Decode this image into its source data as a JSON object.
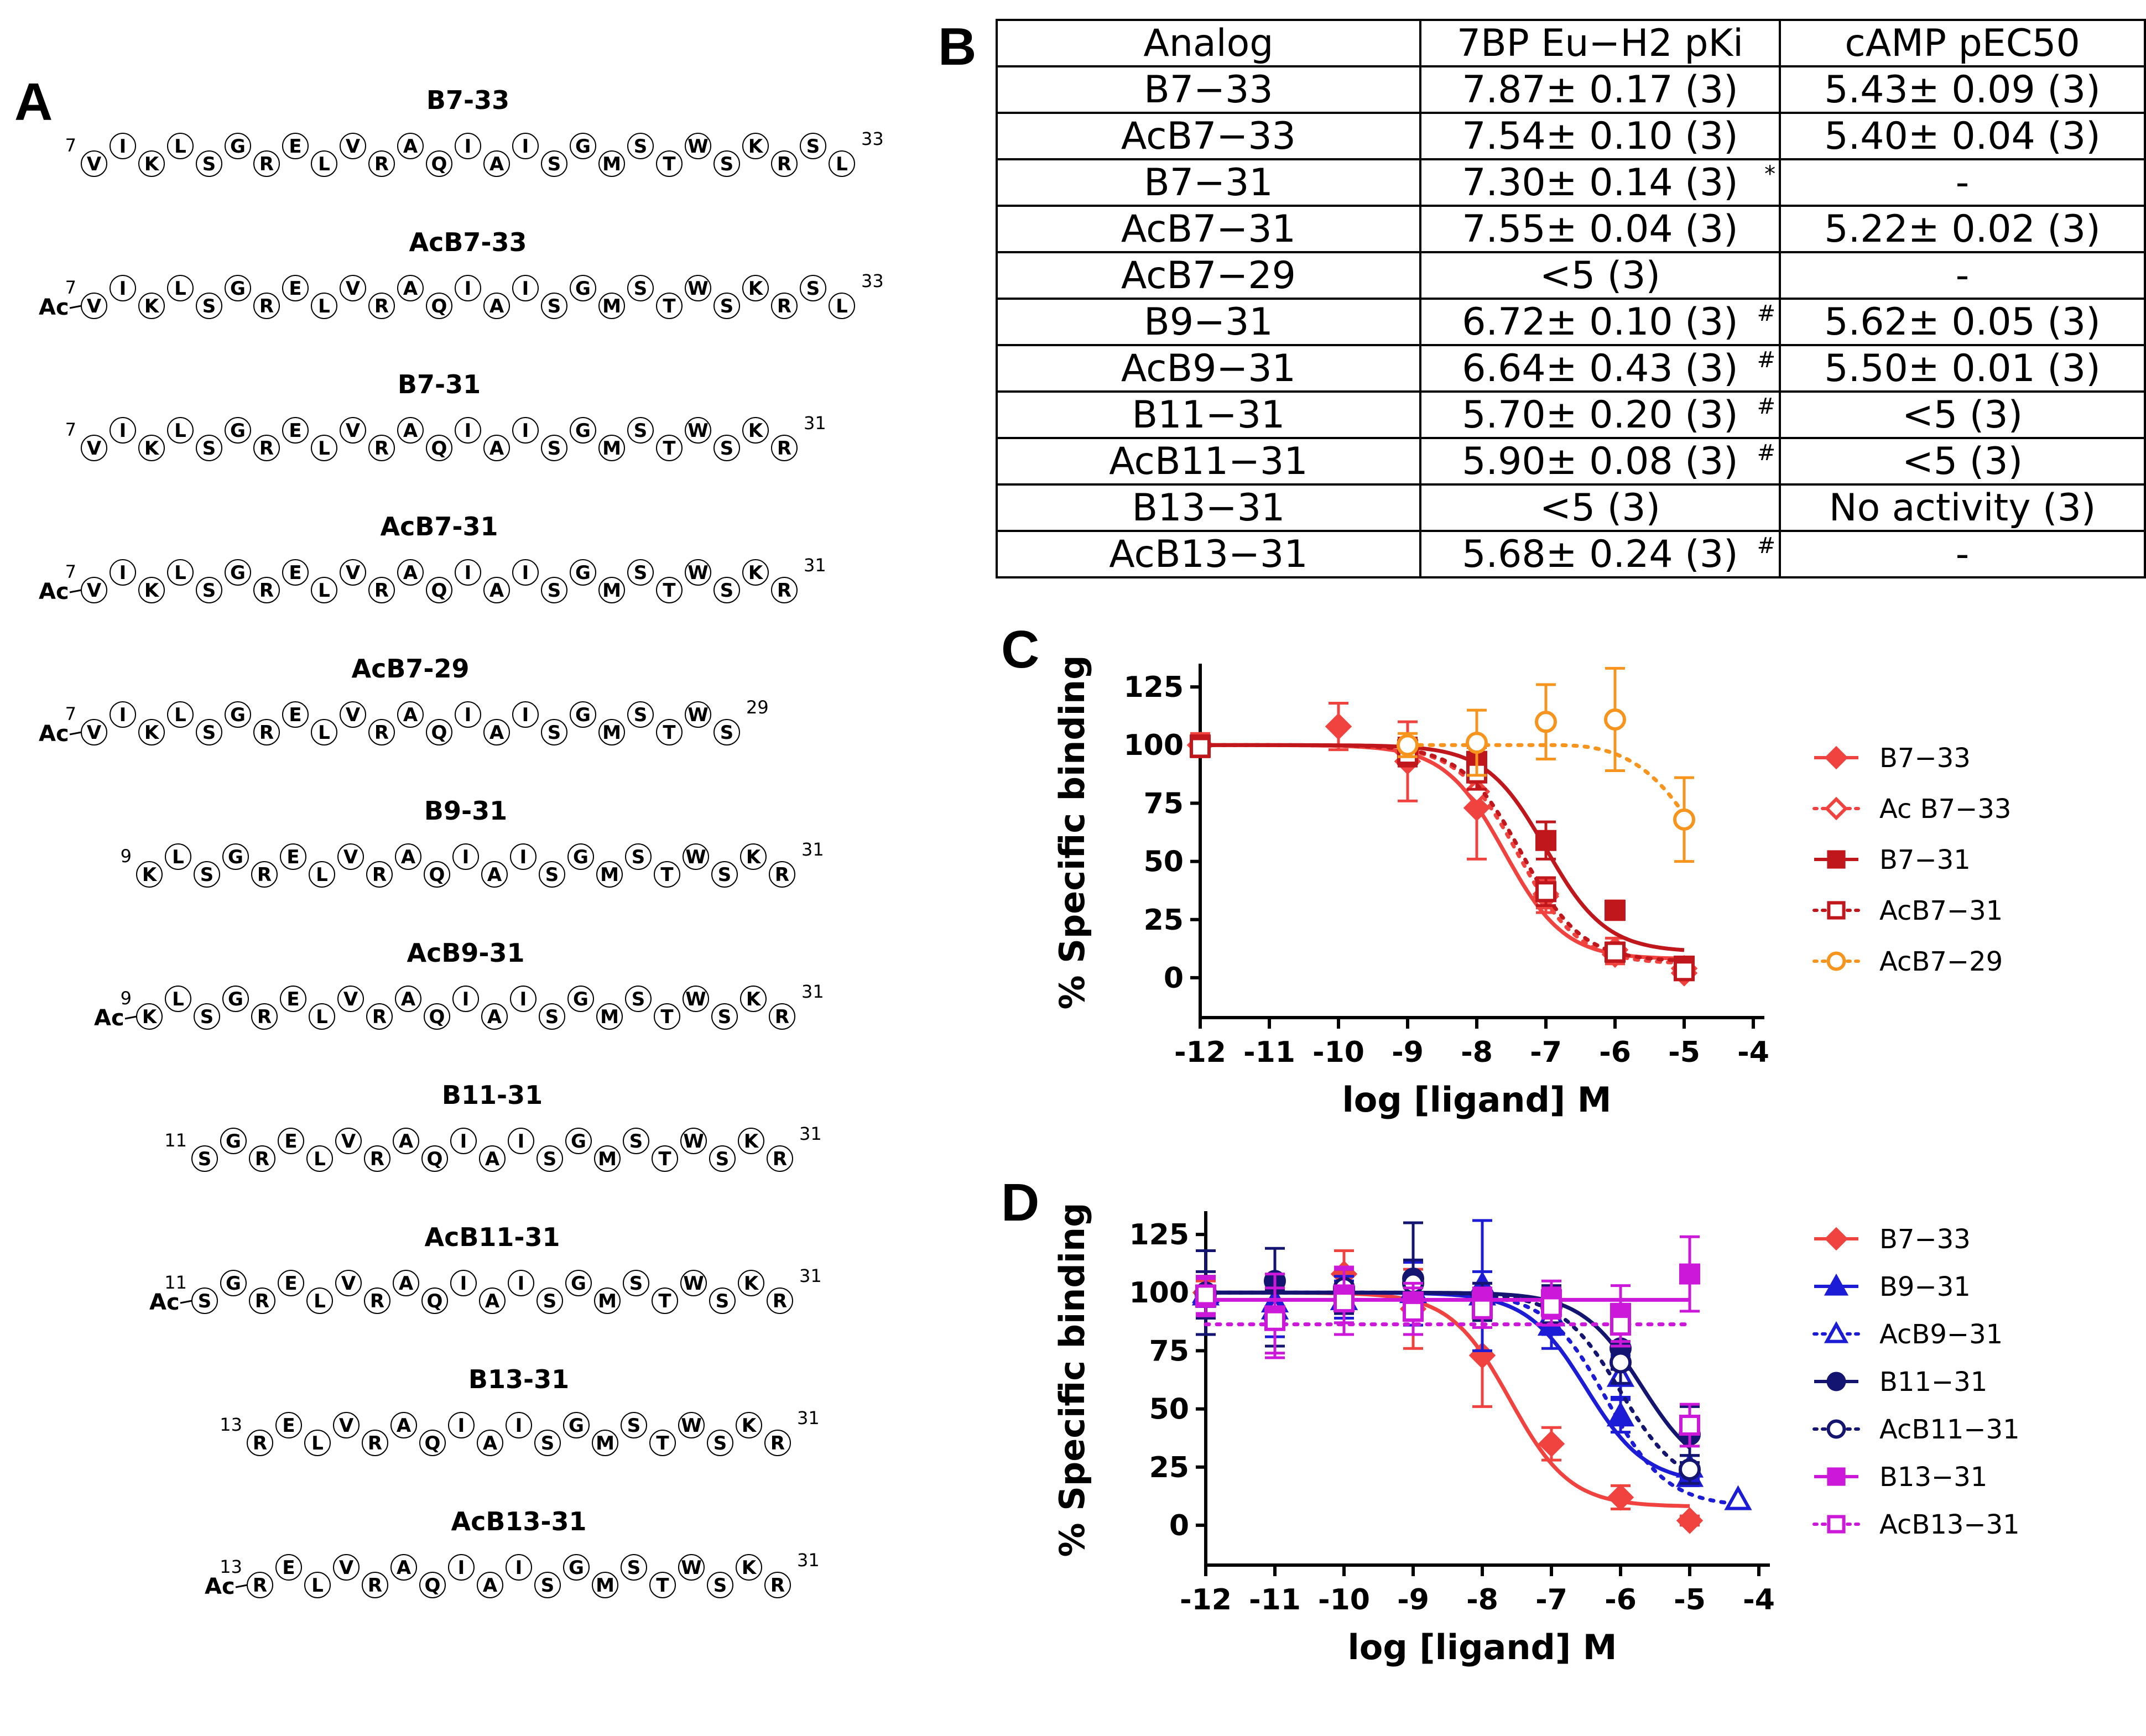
{
  "panel_labels": {
    "a": "A",
    "b": "B",
    "c": "C",
    "d": "D"
  },
  "peptides": [
    {
      "name": "B7-33",
      "acetyl": "",
      "start": "7",
      "end": "33",
      "residues": [
        "V",
        "I",
        "K",
        "L",
        "S",
        "G",
        "R",
        "E",
        "L",
        "V",
        "R",
        "A",
        "Q",
        "I",
        "A",
        "I",
        "S",
        "G",
        "M",
        "S",
        "T",
        "W",
        "S",
        "K",
        "R",
        "S",
        "L"
      ]
    },
    {
      "name": "AcB7-33",
      "acetyl": "Ac",
      "start": "7",
      "end": "33",
      "residues": [
        "V",
        "I",
        "K",
        "L",
        "S",
        "G",
        "R",
        "E",
        "L",
        "V",
        "R",
        "A",
        "Q",
        "I",
        "A",
        "I",
        "S",
        "G",
        "M",
        "S",
        "T",
        "W",
        "S",
        "K",
        "R",
        "S",
        "L"
      ]
    },
    {
      "name": "B7-31",
      "acetyl": "",
      "start": "7",
      "end": "31",
      "residues": [
        "V",
        "I",
        "K",
        "L",
        "S",
        "G",
        "R",
        "E",
        "L",
        "V",
        "R",
        "A",
        "Q",
        "I",
        "A",
        "I",
        "S",
        "G",
        "M",
        "S",
        "T",
        "W",
        "S",
        "K",
        "R"
      ]
    },
    {
      "name": "AcB7-31",
      "acetyl": "Ac",
      "start": "7",
      "end": "31",
      "residues": [
        "V",
        "I",
        "K",
        "L",
        "S",
        "G",
        "R",
        "E",
        "L",
        "V",
        "R",
        "A",
        "Q",
        "I",
        "A",
        "I",
        "S",
        "G",
        "M",
        "S",
        "T",
        "W",
        "S",
        "K",
        "R"
      ]
    },
    {
      "name": "AcB7-29",
      "acetyl": "Ac",
      "start": "7",
      "end": "29",
      "residues": [
        "V",
        "I",
        "K",
        "L",
        "S",
        "G",
        "R",
        "E",
        "L",
        "V",
        "R",
        "A",
        "Q",
        "I",
        "A",
        "I",
        "S",
        "G",
        "M",
        "S",
        "T",
        "W",
        "S"
      ]
    },
    {
      "name": "B9-31",
      "acetyl": "",
      "start": "9",
      "end": "31",
      "residues": [
        "K",
        "L",
        "S",
        "G",
        "R",
        "E",
        "L",
        "V",
        "R",
        "A",
        "Q",
        "I",
        "A",
        "I",
        "S",
        "G",
        "M",
        "S",
        "T",
        "W",
        "S",
        "K",
        "R"
      ]
    },
    {
      "name": "AcB9-31",
      "acetyl": "Ac",
      "start": "9",
      "end": "31",
      "residues": [
        "K",
        "L",
        "S",
        "G",
        "R",
        "E",
        "L",
        "V",
        "R",
        "A",
        "Q",
        "I",
        "A",
        "I",
        "S",
        "G",
        "M",
        "S",
        "T",
        "W",
        "S",
        "K",
        "R"
      ]
    },
    {
      "name": "B11-31",
      "acetyl": "",
      "start": "11",
      "end": "31",
      "residues": [
        "S",
        "G",
        "R",
        "E",
        "L",
        "V",
        "R",
        "A",
        "Q",
        "I",
        "A",
        "I",
        "S",
        "G",
        "M",
        "S",
        "T",
        "W",
        "S",
        "K",
        "R"
      ]
    },
    {
      "name": "AcB11-31",
      "acetyl": "Ac",
      "start": "11",
      "end": "31",
      "residues": [
        "S",
        "G",
        "R",
        "E",
        "L",
        "V",
        "R",
        "A",
        "Q",
        "I",
        "A",
        "I",
        "S",
        "G",
        "M",
        "S",
        "T",
        "W",
        "S",
        "K",
        "R"
      ]
    },
    {
      "name": "B13-31",
      "acetyl": "",
      "start": "13",
      "end": "31",
      "residues": [
        "R",
        "E",
        "L",
        "V",
        "R",
        "A",
        "Q",
        "I",
        "A",
        "I",
        "S",
        "G",
        "M",
        "S",
        "T",
        "W",
        "S",
        "K",
        "R"
      ]
    },
    {
      "name": "AcB13-31",
      "acetyl": "Ac",
      "start": "13",
      "end": "31",
      "residues": [
        "R",
        "E",
        "L",
        "V",
        "R",
        "A",
        "Q",
        "I",
        "A",
        "I",
        "S",
        "G",
        "M",
        "S",
        "T",
        "W",
        "S",
        "K",
        "R"
      ]
    }
  ],
  "table": {
    "headers": [
      "Analog",
      "7BP Eu−H2 pKi",
      "cAMP pEC50"
    ],
    "rows": [
      {
        "analog": "B7−33",
        "pki": "7.87± 0.17 (3)",
        "pki_mark": "",
        "camp": "5.43± 0.09 (3)"
      },
      {
        "analog": "AcB7−33",
        "pki": "7.54± 0.10 (3)",
        "pki_mark": "",
        "camp": "5.40± 0.04 (3)"
      },
      {
        "analog": "B7−31",
        "pki": "7.30± 0.14 (3)",
        "pki_mark": "*",
        "camp": "-"
      },
      {
        "analog": "AcB7−31",
        "pki": "7.55± 0.04 (3)",
        "pki_mark": "",
        "camp": "5.22± 0.02 (3)"
      },
      {
        "analog": "AcB7−29",
        "pki": "<5 (3)",
        "pki_mark": "",
        "camp": "-"
      },
      {
        "analog": "B9−31",
        "pki": "6.72± 0.10 (3)",
        "pki_mark": "#",
        "camp": "5.62± 0.05 (3)"
      },
      {
        "analog": "AcB9−31",
        "pki": "6.64± 0.43 (3)",
        "pki_mark": "#",
        "camp": "5.50± 0.01 (3)"
      },
      {
        "analog": "B11−31",
        "pki": "5.70± 0.20 (3)",
        "pki_mark": "#",
        "camp": "<5 (3)"
      },
      {
        "analog": "AcB11−31",
        "pki": "5.90± 0.08 (3)",
        "pki_mark": "#",
        "camp": "<5 (3)"
      },
      {
        "analog": "B13−31",
        "pki": "<5 (3)",
        "pki_mark": "",
        "camp": "No activity (3)"
      },
      {
        "analog": "AcB13−31",
        "pki": "5.68± 0.24 (3)",
        "pki_mark": "#",
        "camp": "-"
      }
    ]
  },
  "chart_data": [
    {
      "type": "line",
      "panel": "C",
      "xlabel": "log [ligand] M",
      "ylabel": "% Specific binding",
      "xlim": [
        -12,
        -4
      ],
      "ylim": [
        -10,
        135
      ],
      "xticks": [
        -12,
        -11,
        -10,
        -9,
        -8,
        -7,
        -6,
        -5,
        -4
      ],
      "yticks": [
        0,
        25,
        50,
        75,
        100,
        125
      ],
      "legend": "right",
      "series": [
        {
          "name": "B7−33",
          "color": "#f0433f",
          "marker": "diamond",
          "filled": true,
          "dash": false,
          "pIC50": 7.6,
          "bottom": 8,
          "x": [
            -12,
            -10,
            -9,
            -8,
            -7,
            -6,
            -5
          ],
          "y": [
            100,
            108,
            93,
            73,
            35,
            12,
            2
          ],
          "err": [
            5,
            10,
            17,
            22,
            7,
            5,
            2
          ]
        },
        {
          "name": "Ac B7−33",
          "color": "#f0433f",
          "marker": "diamond",
          "filled": false,
          "dash": true,
          "pIC50": 7.4,
          "bottom": 6,
          "x": [
            -12,
            -9,
            -8,
            -7,
            -6,
            -5
          ],
          "y": [
            100,
            97,
            80,
            36,
            10,
            4
          ],
          "err": [
            4,
            6,
            8,
            6,
            4,
            2
          ]
        },
        {
          "name": "B7−31",
          "color": "#c0171c",
          "marker": "square",
          "filled": true,
          "dash": false,
          "pIC50": 7.0,
          "bottom": 11,
          "x": [
            -12,
            -9,
            -8,
            -7,
            -6,
            -5
          ],
          "y": [
            100,
            98,
            93,
            59,
            29,
            5
          ],
          "err": [
            4,
            5,
            6,
            8,
            4,
            2
          ]
        },
        {
          "name": "AcB7−31",
          "color": "#c0171c",
          "marker": "square",
          "filled": false,
          "dash": true,
          "pIC50": 7.35,
          "bottom": 7,
          "x": [
            -12,
            -9,
            -8,
            -7,
            -6,
            -5
          ],
          "y": [
            99,
            96,
            88,
            37,
            11,
            3
          ],
          "err": [
            4,
            5,
            7,
            6,
            4,
            2
          ]
        },
        {
          "name": "AcB7−29",
          "color": "#f7941d",
          "marker": "circle",
          "filled": false,
          "dash": true,
          "flat": true,
          "x": [
            -9,
            -8,
            -7,
            -6,
            -5
          ],
          "y": [
            100,
            101,
            110,
            111,
            68
          ],
          "err": [
            5,
            14,
            16,
            22,
            18
          ]
        }
      ]
    },
    {
      "type": "line",
      "panel": "D",
      "xlabel": "log [ligand] M",
      "ylabel": "% Specific binding",
      "xlim": [
        -12,
        -4
      ],
      "ylim": [
        -10,
        135
      ],
      "xticks": [
        -12,
        -11,
        -10,
        -9,
        -8,
        -7,
        -6,
        -5,
        -4
      ],
      "yticks": [
        0,
        25,
        50,
        75,
        100,
        125
      ],
      "legend": "right",
      "series": [
        {
          "name": "B7−33",
          "color": "#f0433f",
          "marker": "diamond",
          "filled": true,
          "dash": false,
          "pIC50": 7.6,
          "bottom": 8,
          "x": [
            -12,
            -10,
            -9,
            -8,
            -7,
            -6,
            -5
          ],
          "y": [
            100,
            108,
            93,
            73,
            35,
            12,
            2
          ],
          "err": [
            5,
            10,
            17,
            22,
            7,
            5,
            2
          ]
        },
        {
          "name": "B9−31",
          "color": "#1c1cd6",
          "marker": "triangle",
          "filled": true,
          "dash": false,
          "pIC50": 6.5,
          "bottom": 18,
          "x": [
            -12,
            -11,
            -10,
            -9,
            -8,
            -7,
            -6,
            -5
          ],
          "y": [
            100,
            96,
            97,
            101,
            103,
            86,
            47,
            21
          ],
          "err": [
            6,
            10,
            8,
            12,
            28,
            10,
            7,
            4
          ]
        },
        {
          "name": "AcB9−31",
          "color": "#1c1cd6",
          "marker": "triangle",
          "filled": false,
          "dash": true,
          "pIC50": 6.2,
          "bottom": 8,
          "x": [
            -12,
            -11,
            -10,
            -9,
            -8,
            -7,
            -6,
            -5,
            -4.3
          ],
          "y": [
            99,
            93,
            97,
            100,
            99,
            90,
            64,
            25,
            11
          ],
          "err": [
            8,
            12,
            10,
            14,
            10,
            8,
            9,
            5,
            0
          ]
        },
        {
          "name": "B11−31",
          "color": "#141570",
          "marker": "circle",
          "filled": true,
          "dash": false,
          "pIC50": 5.7,
          "bottom": 20,
          "x": [
            -12,
            -11,
            -10,
            -9,
            -8,
            -7,
            -6,
            -5
          ],
          "y": [
            100,
            105,
            101,
            106,
            98,
            95,
            76,
            39
          ],
          "err": [
            18,
            14,
            10,
            24,
            6,
            8,
            9,
            12
          ]
        },
        {
          "name": "AcB11−31",
          "color": "#141570",
          "marker": "circle",
          "filled": false,
          "dash": true,
          "pIC50": 6.0,
          "bottom": 15,
          "x": [
            -12,
            -11,
            -10,
            -9,
            -8,
            -7,
            -6,
            -5
          ],
          "y": [
            99,
            89,
            102,
            104,
            96,
            94,
            70,
            24
          ],
          "err": [
            10,
            12,
            8,
            10,
            8,
            7,
            9,
            6
          ]
        },
        {
          "name": "B13−31",
          "color": "#cc19d9",
          "marker": "square",
          "filled": true,
          "dash": false,
          "flat": true,
          "x": [
            -12,
            -11,
            -10,
            -9,
            -8,
            -7,
            -6,
            -5
          ],
          "y": [
            98,
            90,
            99,
            96,
            96,
            97,
            91,
            108
          ],
          "err": [
            8,
            18,
            12,
            8,
            6,
            8,
            12,
            16
          ]
        },
        {
          "name": "AcB13−31",
          "color": "#cc19d9",
          "marker": "square",
          "filled": false,
          "dash": true,
          "flat": true,
          "x": [
            -12,
            -11,
            -10,
            -9,
            -8,
            -7,
            -6,
            -5
          ],
          "y": [
            99,
            88,
            96,
            92,
            93,
            94,
            86,
            43
          ],
          "err": [
            8,
            14,
            14,
            10,
            8,
            8,
            9,
            9
          ]
        }
      ]
    }
  ]
}
